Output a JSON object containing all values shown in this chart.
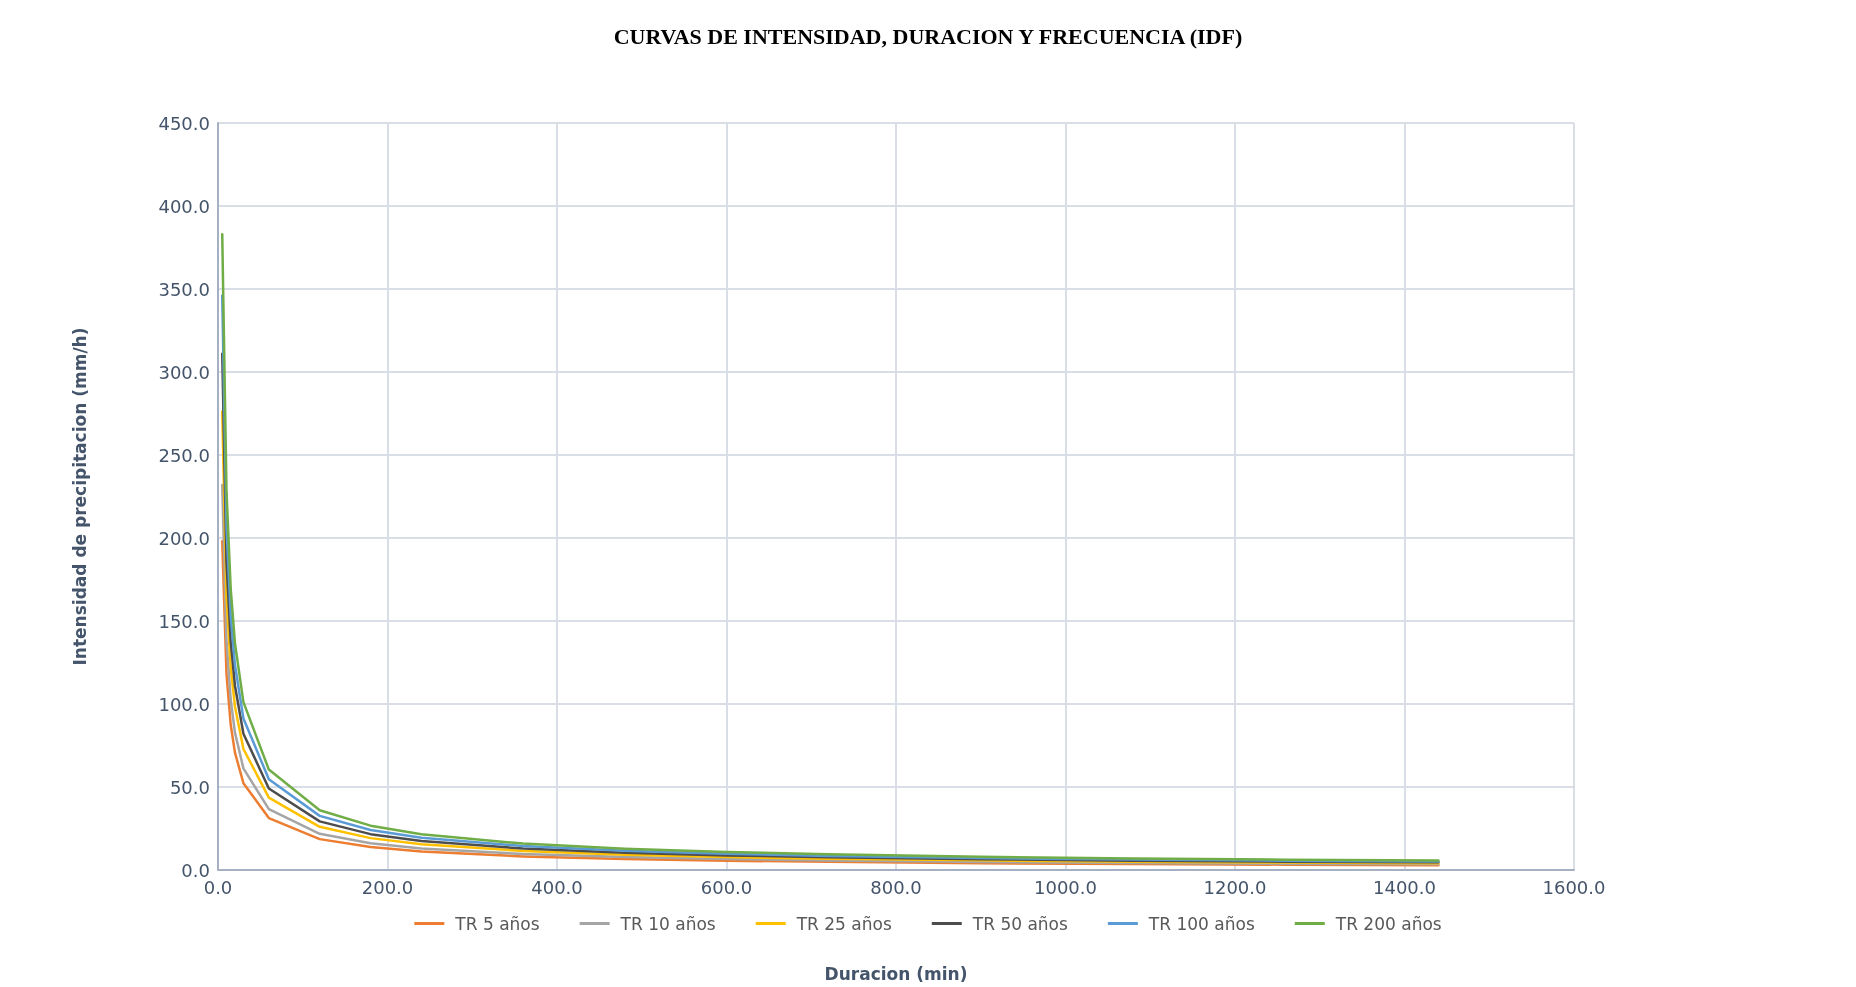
{
  "chart_data": {
    "type": "line",
    "title": "CURVAS DE INTENSIDAD, DURACION Y FRECUENCIA (IDF)",
    "xlabel": "Duracion (min)",
    "ylabel": "Intensidad de precipitacion (mm/h)",
    "x": [
      5,
      10,
      15,
      20,
      30,
      60,
      120,
      180,
      240,
      360,
      480,
      600,
      720,
      900,
      1080,
      1260,
      1440
    ],
    "series": [
      {
        "name": "TR 5 años",
        "color": "#ed7d31",
        "values": [
          198,
          118.2,
          87.5,
          70.7,
          52.3,
          31.3,
          18.6,
          13.8,
          11.1,
          8.2,
          6.6,
          5.6,
          4.9,
          4.1,
          3.6,
          3.2,
          2.9
        ]
      },
      {
        "name": "TR 10 años",
        "color": "#a5a5a5",
        "values": [
          232,
          138.5,
          102.5,
          82.8,
          61.2,
          36.7,
          21.8,
          16.1,
          13.0,
          9.6,
          7.8,
          6.6,
          5.7,
          4.8,
          4.2,
          3.8,
          3.4
        ]
      },
      {
        "name": "TR 25 años",
        "color": "#ffc000",
        "values": [
          276,
          164.8,
          122.0,
          98.5,
          72.9,
          43.6,
          26.0,
          19.2,
          15.5,
          11.5,
          9.2,
          7.8,
          6.8,
          5.8,
          5.0,
          4.5,
          4.1
        ]
      },
      {
        "name": "TR 50 años",
        "color": "#4d4d4d",
        "values": [
          311,
          185.7,
          137.5,
          111.0,
          82.1,
          49.1,
          29.3,
          21.6,
          17.5,
          12.9,
          10.4,
          8.8,
          7.7,
          6.5,
          5.6,
          5.0,
          4.6
        ]
      },
      {
        "name": "TR 100 años",
        "color": "#5b9bd5",
        "values": [
          346,
          206.6,
          152.9,
          123.5,
          91.3,
          54.7,
          32.6,
          24.1,
          19.4,
          14.4,
          11.6,
          9.8,
          8.5,
          7.2,
          6.3,
          5.6,
          5.1
        ]
      },
      {
        "name": "TR 200 años",
        "color": "#70ad47",
        "values": [
          383,
          228.7,
          169.3,
          136.7,
          101.1,
          60.5,
          36.0,
          26.7,
          21.5,
          15.9,
          12.8,
          10.8,
          9.5,
          8.0,
          6.9,
          6.2,
          5.7
        ]
      }
    ],
    "xlim": [
      0,
      1600
    ],
    "ylim": [
      0,
      450
    ],
    "xticks": [
      {
        "value": 0,
        "label": "0.0"
      },
      {
        "value": 200,
        "label": "200.0"
      },
      {
        "value": 400,
        "label": "400.0"
      },
      {
        "value": 600,
        "label": "600.0"
      },
      {
        "value": 800,
        "label": "800.0"
      },
      {
        "value": 1000,
        "label": "1000.0"
      },
      {
        "value": 1200,
        "label": "1200.0"
      },
      {
        "value": 1400,
        "label": "1400.0"
      },
      {
        "value": 1600,
        "label": "1600.0"
      }
    ],
    "yticks": [
      {
        "value": 0,
        "label": "0.0"
      },
      {
        "value": 50,
        "label": "50.0"
      },
      {
        "value": 100,
        "label": "100.0"
      },
      {
        "value": 150,
        "label": "150.0"
      },
      {
        "value": 200,
        "label": "200.0"
      },
      {
        "value": 250,
        "label": "250.0"
      },
      {
        "value": 300,
        "label": "300.0"
      },
      {
        "value": 350,
        "label": "350.0"
      },
      {
        "value": 400,
        "label": "400.0"
      },
      {
        "value": 450,
        "label": "450.0"
      }
    ],
    "grid": true,
    "legend": "bottom",
    "marker": "none",
    "line_style": "solid"
  }
}
